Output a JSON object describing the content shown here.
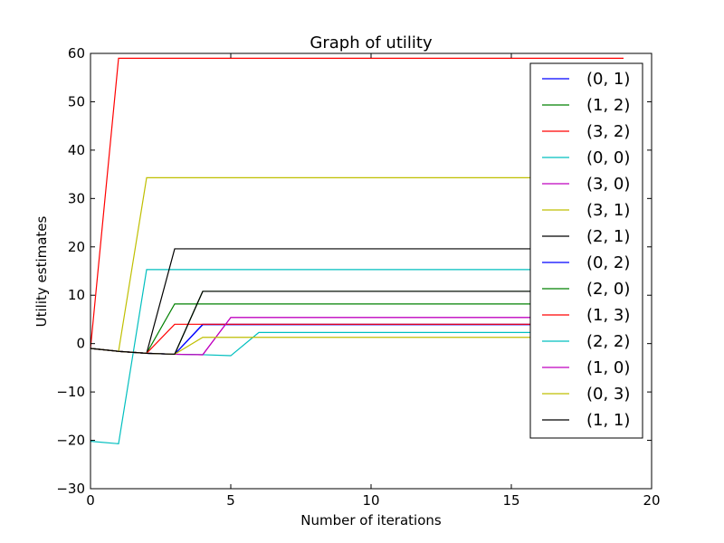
{
  "chart_data": {
    "type": "line",
    "title": "Graph of utility",
    "xlabel": "Number of iterations",
    "ylabel": "Utility estimates",
    "xlim": [
      0,
      20
    ],
    "ylim": [
      -30,
      60
    ],
    "xticks": [
      0,
      5,
      10,
      15,
      20
    ],
    "yticks": [
      -30,
      -20,
      -10,
      0,
      10,
      20,
      30,
      40,
      50,
      60
    ],
    "tick_labels_x": [
      "0",
      "5",
      "10",
      "15",
      "20"
    ],
    "tick_labels_y": [
      "−30",
      "−20",
      "−10",
      "0",
      "10",
      "20",
      "30",
      "40",
      "50",
      "60"
    ],
    "grid": false,
    "legend_position": "top-right",
    "series": [
      {
        "name": "(0, 1)",
        "color": "#0000ff",
        "x": [
          0,
          1,
          2,
          3,
          4,
          5,
          6,
          7,
          8,
          9,
          10,
          11,
          12,
          13,
          14,
          15,
          16,
          17,
          18,
          19
        ],
        "y": [
          -1,
          -1.6,
          -2,
          -2.2,
          4,
          4,
          4,
          4,
          4,
          4,
          4,
          4,
          4,
          4,
          4,
          4,
          4,
          4,
          4,
          4
        ]
      },
      {
        "name": "(1, 2)",
        "color": "#008000",
        "x": [
          0,
          1,
          2,
          3,
          4,
          5,
          6,
          7,
          8,
          9,
          10,
          11,
          12,
          13,
          14,
          15,
          16,
          17,
          18,
          19
        ],
        "y": [
          -1,
          -1.6,
          -2,
          8.2,
          8.2,
          8.2,
          8.2,
          8.2,
          8.2,
          8.2,
          8.2,
          8.2,
          8.2,
          8.2,
          8.2,
          8.2,
          8.2,
          8.2,
          8.2,
          8.2
        ]
      },
      {
        "name": "(3, 2)",
        "color": "#ff0000",
        "x": [
          0,
          1,
          2,
          3,
          4,
          5,
          6,
          7,
          8,
          9,
          10,
          11,
          12,
          13,
          14,
          15,
          16,
          17,
          18,
          19
        ],
        "y": [
          -1,
          59,
          59,
          59,
          59,
          59,
          59,
          59,
          59,
          59,
          59,
          59,
          59,
          59,
          59,
          59,
          59,
          59,
          59,
          59
        ]
      },
      {
        "name": "(0, 0)",
        "color": "#00bfbf",
        "x": [
          0,
          1,
          2,
          3,
          4,
          5,
          6,
          7,
          8,
          9,
          10,
          11,
          12,
          13,
          14,
          15,
          16,
          17,
          18,
          19
        ],
        "y": [
          -20.2,
          -20.7,
          15.3,
          15.3,
          15.3,
          15.3,
          15.3,
          15.3,
          15.3,
          15.3,
          15.3,
          15.3,
          15.3,
          15.3,
          15.3,
          15.3,
          15.3,
          15.3,
          15.3,
          15.3
        ]
      },
      {
        "name": "(3, 0)",
        "color": "#bf00bf",
        "x": [
          0,
          1,
          2,
          3,
          4,
          5,
          6,
          7,
          8,
          9,
          10,
          11,
          12,
          13,
          14,
          15,
          16,
          17,
          18,
          19
        ],
        "y": [
          -1,
          -1.6,
          -2,
          -2.2,
          -2.3,
          5.4,
          5.4,
          5.4,
          5.4,
          5.4,
          5.4,
          5.4,
          5.4,
          5.4,
          5.4,
          5.4,
          5.4,
          5.4,
          5.4,
          5.4
        ]
      },
      {
        "name": "(3, 1)",
        "color": "#bfbf00",
        "x": [
          0,
          1,
          2,
          3,
          4,
          5,
          6,
          7,
          8,
          9,
          10,
          11,
          12,
          13,
          14,
          15,
          16,
          17,
          18,
          19
        ],
        "y": [
          -1,
          -1.6,
          34.3,
          34.3,
          34.3,
          34.3,
          34.3,
          34.3,
          34.3,
          34.3,
          34.3,
          34.3,
          34.3,
          34.3,
          34.3,
          34.3,
          34.3,
          34.3,
          34.3,
          34.3
        ]
      },
      {
        "name": "(2, 1)",
        "color": "#000000",
        "x": [
          0,
          1,
          2,
          3,
          4,
          5,
          6,
          7,
          8,
          9,
          10,
          11,
          12,
          13,
          14,
          15,
          16,
          17,
          18,
          19
        ],
        "y": [
          -1,
          -1.6,
          -2,
          19.6,
          19.6,
          19.6,
          19.6,
          19.6,
          19.6,
          19.6,
          19.6,
          19.6,
          19.6,
          19.6,
          19.6,
          19.6,
          19.6,
          19.6,
          19.6,
          19.6
        ]
      },
      {
        "name": "(0, 2)",
        "color": "#0000ff",
        "x": [
          0,
          1,
          2,
          3,
          4,
          5,
          6,
          7,
          8,
          9,
          10,
          11,
          12,
          13,
          14,
          15,
          16,
          17,
          18,
          19
        ],
        "y": [
          -1,
          -1.6,
          -2,
          -2.2,
          3.9,
          3.9,
          3.9,
          3.9,
          3.9,
          3.9,
          3.9,
          3.9,
          3.9,
          3.9,
          3.9,
          3.9,
          3.9,
          3.9,
          3.9,
          3.9
        ]
      },
      {
        "name": "(2, 0)",
        "color": "#008000",
        "x": [
          0,
          1,
          2,
          3,
          4,
          5,
          6,
          7,
          8,
          9,
          10,
          11,
          12,
          13,
          14,
          15,
          16,
          17,
          18,
          19
        ],
        "y": [
          -1,
          -1.6,
          -2,
          -2.2,
          10.8,
          10.8,
          10.8,
          10.8,
          10.8,
          10.8,
          10.8,
          10.8,
          10.8,
          10.8,
          10.8,
          10.8,
          10.8,
          10.8,
          10.8,
          10.8
        ]
      },
      {
        "name": "(1, 3)",
        "color": "#ff0000",
        "x": [
          0,
          1,
          2,
          3,
          4,
          5,
          6,
          7,
          8,
          9,
          10,
          11,
          12,
          13,
          14,
          15,
          16,
          17,
          18,
          19
        ],
        "y": [
          -1,
          -1.6,
          -2,
          4,
          4,
          4,
          4,
          4,
          4,
          4,
          4,
          4,
          4,
          4,
          4,
          4,
          4,
          4,
          4,
          4
        ]
      },
      {
        "name": "(2, 2)",
        "color": "#00bfbf",
        "x": [
          0,
          1,
          2,
          3,
          4,
          5,
          6,
          7,
          8,
          9,
          10,
          11,
          12,
          13,
          14,
          15,
          16,
          17,
          18,
          19
        ],
        "y": [
          -1,
          -1.6,
          -2,
          -2.2,
          -2.3,
          -2.5,
          2.3,
          2.3,
          2.3,
          2.3,
          2.3,
          2.3,
          2.3,
          2.3,
          2.3,
          2.3,
          2.3,
          2.3,
          2.3,
          2.3
        ]
      },
      {
        "name": "(1, 0)",
        "color": "#bf00bf",
        "x": [
          0,
          1,
          2,
          3,
          4,
          5,
          6,
          7,
          8,
          9,
          10,
          11,
          12,
          13,
          14,
          15,
          16,
          17,
          18,
          19
        ],
        "y": [
          -1,
          -1.6,
          -2,
          -2.2,
          -2.3,
          5.4,
          5.4,
          5.4,
          5.4,
          5.4,
          5.4,
          5.4,
          5.4,
          5.4,
          5.4,
          5.4,
          5.4,
          5.4,
          5.4,
          5.4
        ]
      },
      {
        "name": "(0, 3)",
        "color": "#bfbf00",
        "x": [
          0,
          1,
          2,
          3,
          4,
          5,
          6,
          7,
          8,
          9,
          10,
          11,
          12,
          13,
          14,
          15,
          16,
          17,
          18,
          19
        ],
        "y": [
          -1,
          -1.6,
          -2,
          -2.2,
          1.3,
          1.3,
          1.3,
          1.3,
          1.3,
          1.3,
          1.3,
          1.3,
          1.3,
          1.3,
          1.3,
          1.3,
          1.3,
          1.3,
          1.3,
          1.3
        ]
      },
      {
        "name": "(1, 1)",
        "color": "#000000",
        "x": [
          0,
          1,
          2,
          3,
          4,
          5,
          6,
          7,
          8,
          9,
          10,
          11,
          12,
          13,
          14,
          15,
          16,
          17,
          18,
          19
        ],
        "y": [
          -1,
          -1.6,
          -2,
          -2.2,
          10.8,
          10.8,
          10.8,
          10.8,
          10.8,
          10.8,
          10.8,
          10.8,
          10.8,
          10.8,
          10.8,
          10.8,
          10.8,
          10.8,
          10.8,
          10.8
        ]
      }
    ]
  }
}
